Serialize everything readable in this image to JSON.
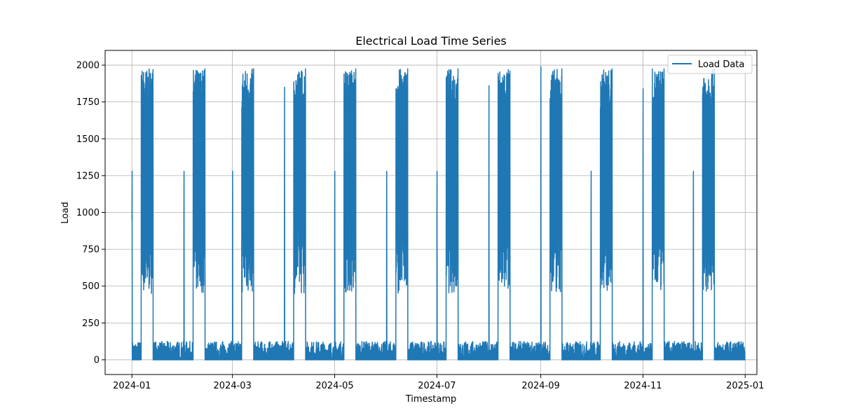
{
  "chart_data": {
    "type": "line",
    "title": "Electrical Load Time Series",
    "xlabel": "Timestamp",
    "ylabel": "Load",
    "grid": true,
    "legend_location": "upper-right",
    "xlim": [
      "2023-12-16",
      "2025-01-08"
    ],
    "ylim": [
      -100,
      2100
    ],
    "x_ticks": [
      "2024-01",
      "2024-03",
      "2024-05",
      "2024-07",
      "2024-09",
      "2024-11",
      "2025-01"
    ],
    "y_ticks": [
      0,
      250,
      500,
      750,
      1000,
      1250,
      1500,
      1750,
      2000
    ],
    "color": "#1f77b4",
    "series": [
      {
        "name": "Load Data",
        "pattern": "monthly-bursts",
        "x_start": "2024-01-01",
        "x_end": "2024-12-31",
        "months": [
          {
            "start": "2024-01-01",
            "start_peak": 1280,
            "burst_peak": 1970
          },
          {
            "start": "2024-02-01",
            "start_peak": 1280,
            "burst_peak": 1975
          },
          {
            "start": "2024-03-01",
            "start_peak": 1280,
            "burst_peak": 1975
          },
          {
            "start": "2024-04-01",
            "start_peak": 1850,
            "burst_peak": 1975
          },
          {
            "start": "2024-05-01",
            "start_peak": 1280,
            "burst_peak": 1975
          },
          {
            "start": "2024-06-01",
            "start_peak": 1280,
            "burst_peak": 1975
          },
          {
            "start": "2024-07-01",
            "start_peak": 1280,
            "burst_peak": 1975
          },
          {
            "start": "2024-08-01",
            "start_peak": 1860,
            "burst_peak": 1960
          },
          {
            "start": "2024-09-01",
            "start_peak": 1990,
            "burst_peak": 1975
          },
          {
            "start": "2024-10-01",
            "start_peak": 1280,
            "burst_peak": 1975
          },
          {
            "start": "2024-11-01",
            "start_peak": 1840,
            "burst_peak": 1975
          },
          {
            "start": "2024-12-01",
            "start_peak": 1280,
            "burst_peak": 1975
          }
        ],
        "baseline_range": [
          0,
          125
        ],
        "burst_low_range": [
          450,
          900
        ],
        "burst_high_range": [
          1700,
          1975
        ]
      }
    ]
  }
}
